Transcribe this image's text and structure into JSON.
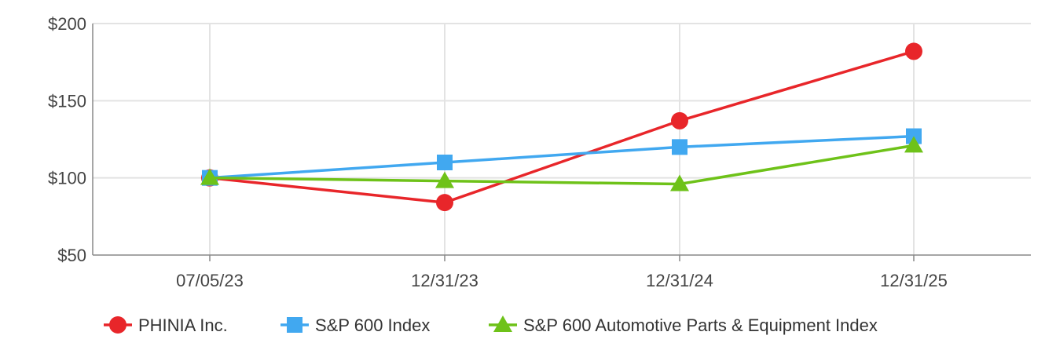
{
  "chart_data": {
    "type": "line",
    "categories": [
      "07/05/23",
      "12/31/23",
      "12/31/24",
      "12/31/25"
    ],
    "y_ticks": [
      50,
      100,
      150,
      200
    ],
    "y_tick_prefix": "$",
    "ylim": [
      50,
      200
    ],
    "grid": true,
    "legend_position": "bottom",
    "series": [
      {
        "name": "PHINIA Inc.",
        "color": "#e8262a",
        "marker": "circle",
        "values": [
          100,
          84,
          137,
          182
        ]
      },
      {
        "name": "S&P 600 Index",
        "color": "#41a8f0",
        "marker": "square",
        "values": [
          100,
          110,
          120,
          127
        ]
      },
      {
        "name": "S&P 600 Automotive Parts & Equipment Index",
        "color": "#6ec219",
        "marker": "triangle",
        "values": [
          100,
          98,
          96,
          121
        ]
      }
    ]
  }
}
